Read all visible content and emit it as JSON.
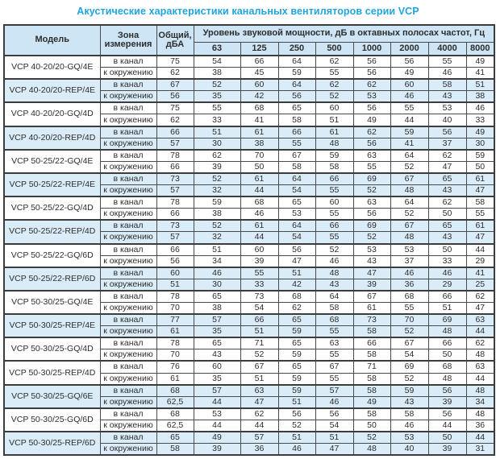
{
  "title": "Акустические характеристики канальных вентиляторов  серии VCP",
  "accent_colors": {
    "title_text": "#1fa5de",
    "header_background": "#cde5f4",
    "highlight_row_background": "#d9ecf8",
    "border": "#4a4a4a"
  },
  "table": {
    "columns": {
      "model": "Модель",
      "zone": "Зона измерения",
      "total": "Общий, дБА",
      "spl": "Уровень звуковой мощности, дБ в октавных полосах частот, Гц",
      "frequencies": [
        "63",
        "125",
        "250",
        "500",
        "1000",
        "2000",
        "4000",
        "8000"
      ]
    },
    "groups": [
      {
        "model": "VCP 40-20/20-GQ/4E",
        "highlight": false,
        "rows": [
          {
            "zone": "в канал",
            "total": "75",
            "levels": [
              "54",
              "66",
              "64",
              "62",
              "56",
              "56",
              "55",
              "49"
            ]
          },
          {
            "zone": "к окружению",
            "total": "62",
            "levels": [
              "38",
              "45",
              "59",
              "55",
              "56",
              "49",
              "46",
              "41"
            ]
          }
        ]
      },
      {
        "model": "VCP 40-20/20-REP/4E",
        "highlight": true,
        "rows": [
          {
            "zone": "в канал",
            "total": "67",
            "levels": [
              "52",
              "60",
              "64",
              "62",
              "62",
              "60",
              "58",
              "51"
            ]
          },
          {
            "zone": "к окружению",
            "total": "56",
            "levels": [
              "35",
              "42",
              "56",
              "52",
              "53",
              "46",
              "43",
              "38"
            ]
          }
        ]
      },
      {
        "model": "VCP 40-20/20-GQ/4D",
        "highlight": false,
        "rows": [
          {
            "zone": "в канал",
            "total": "75",
            "levels": [
              "55",
              "68",
              "65",
              "60",
              "56",
              "55",
              "53",
              "46"
            ]
          },
          {
            "zone": "к окружению",
            "total": "62",
            "levels": [
              "33",
              "41",
              "58",
              "51",
              "49",
              "44",
              "40",
              "33"
            ]
          }
        ]
      },
      {
        "model": "VCP 40-20/20-REP/4D",
        "highlight": true,
        "rows": [
          {
            "zone": "в канал",
            "total": "66",
            "levels": [
              "51",
              "61",
              "66",
              "61",
              "62",
              "59",
              "56",
              "49"
            ]
          },
          {
            "zone": "к окружению",
            "total": "57",
            "levels": [
              "30",
              "38",
              "55",
              "48",
              "56",
              "41",
              "37",
              "30"
            ]
          }
        ]
      },
      {
        "model": "VCP 50-25/22-GQ/4E",
        "highlight": false,
        "rows": [
          {
            "zone": "в канал",
            "total": "78",
            "levels": [
              "62",
              "70",
              "67",
              "59",
              "63",
              "64",
              "62",
              "59"
            ]
          },
          {
            "zone": "к окружению",
            "total": "66",
            "levels": [
              "39",
              "50",
              "58",
              "58",
              "55",
              "52",
              "47",
              "50"
            ]
          }
        ]
      },
      {
        "model": "VCP 50-25/22-REP/4E",
        "highlight": true,
        "rows": [
          {
            "zone": "в канал",
            "total": "73",
            "levels": [
              "52",
              "61",
              "64",
              "66",
              "69",
              "67",
              "65",
              "61"
            ]
          },
          {
            "zone": "к окружению",
            "total": "57",
            "levels": [
              "32",
              "44",
              "54",
              "55",
              "52",
              "48",
              "43",
              "47"
            ]
          }
        ]
      },
      {
        "model": "VCP 50-25/22-GQ/4D",
        "highlight": false,
        "rows": [
          {
            "zone": "в канал",
            "total": "78",
            "levels": [
              "59",
              "68",
              "65",
              "60",
              "63",
              "64",
              "62",
              "58"
            ]
          },
          {
            "zone": "к окружению",
            "total": "66",
            "levels": [
              "38",
              "46",
              "53",
              "55",
              "56",
              "52",
              "50",
              "55"
            ]
          }
        ]
      },
      {
        "model": "VCP 50-25/22-REP/4D",
        "highlight": true,
        "rows": [
          {
            "zone": "в канал",
            "total": "73",
            "levels": [
              "52",
              "61",
              "64",
              "66",
              "69",
              "67",
              "65",
              "61"
            ]
          },
          {
            "zone": "к окружению",
            "total": "57",
            "levels": [
              "32",
              "44",
              "54",
              "55",
              "52",
              "48",
              "43",
              "47"
            ]
          }
        ]
      },
      {
        "model": "VCP 50-25/22-GQ/6D",
        "highlight": false,
        "rows": [
          {
            "zone": "в канал",
            "total": "66",
            "levels": [
              "51",
              "60",
              "56",
              "52",
              "53",
              "53",
              "50",
              "44"
            ]
          },
          {
            "zone": "к окружению",
            "total": "56",
            "levels": [
              "34",
              "39",
              "47",
              "46",
              "43",
              "37",
              "33",
              "29"
            ]
          }
        ]
      },
      {
        "model": "VCP 50-25/22-REP/6D",
        "highlight": true,
        "rows": [
          {
            "zone": "в канал",
            "total": "60",
            "levels": [
              "46",
              "55",
              "51",
              "48",
              "47",
              "46",
              "46",
              "41"
            ]
          },
          {
            "zone": "к окружению",
            "total": "51",
            "levels": [
              "30",
              "33",
              "42",
              "43",
              "39",
              "36",
              "29",
              "25"
            ]
          }
        ]
      },
      {
        "model": "VCP 50-30/25-GQ/4E",
        "highlight": false,
        "rows": [
          {
            "zone": "в канал",
            "total": "78",
            "levels": [
              "65",
              "73",
              "68",
              "64",
              "67",
              "68",
              "66",
              "62"
            ]
          },
          {
            "zone": "к окружению",
            "total": "70",
            "levels": [
              "38",
              "54",
              "62",
              "58",
              "61",
              "55",
              "51",
              "47"
            ]
          }
        ]
      },
      {
        "model": "VCP 50-30/25-REP/4E",
        "highlight": true,
        "rows": [
          {
            "zone": "в канал",
            "total": "77",
            "levels": [
              "57",
              "66",
              "65",
              "68",
              "73",
              "70",
              "69",
              "63"
            ]
          },
          {
            "zone": "к окружению",
            "total": "61",
            "levels": [
              "35",
              "51",
              "59",
              "55",
              "58",
              "52",
              "48",
              "44"
            ]
          }
        ]
      },
      {
        "model": "VCP 50-30/25-GQ/4D",
        "highlight": false,
        "rows": [
          {
            "zone": "в канал",
            "total": "78",
            "levels": [
              "65",
              "71",
              "65",
              "63",
              "66",
              "67",
              "66",
              "62"
            ]
          },
          {
            "zone": "к окружению",
            "total": "70",
            "levels": [
              "43",
              "52",
              "59",
              "55",
              "58",
              "54",
              "50",
              "48"
            ]
          }
        ]
      },
      {
        "model": "VCP 50-30/25-REP/4D",
        "highlight": false,
        "rows": [
          {
            "zone": "в канал",
            "total": "76",
            "levels": [
              "60",
              "67",
              "65",
              "67",
              "71",
              "69",
              "68",
              "63"
            ]
          },
          {
            "zone": "к окружению",
            "total": "61",
            "levels": [
              "35",
              "51",
              "59",
              "55",
              "58",
              "52",
              "48",
              "44"
            ]
          }
        ]
      },
      {
        "model": "VCP 50-30/25-GQ/6E",
        "highlight": true,
        "rows": [
          {
            "zone": "в канал",
            "total": "68",
            "levels": [
              "57",
              "63",
              "59",
              "57",
              "58",
              "59",
              "56",
              "48"
            ]
          },
          {
            "zone": "к окружению",
            "total": "62,5",
            "levels": [
              "44",
              "47",
              "51",
              "46",
              "49",
              "43",
              "39",
              "34"
            ]
          }
        ]
      },
      {
        "model": "VCP 50-30/25-GQ/6D",
        "highlight": false,
        "rows": [
          {
            "zone": "в канал",
            "total": "68",
            "levels": [
              "53",
              "62",
              "56",
              "56",
              "58",
              "58",
              "56",
              "48"
            ]
          },
          {
            "zone": "к окружению",
            "total": "62,5",
            "levels": [
              "44",
              "44",
              "52",
              "54",
              "50",
              "46",
              "44",
              "36"
            ]
          }
        ]
      },
      {
        "model": "VCP 50-30/25-REP/6D",
        "highlight": true,
        "rows": [
          {
            "zone": "в канал",
            "total": "65",
            "levels": [
              "49",
              "57",
              "51",
              "51",
              "52",
              "53",
              "50",
              "44"
            ]
          },
          {
            "zone": "к окружению",
            "total": "58",
            "levels": [
              "39",
              "36",
              "46",
              "47",
              "48",
              "40",
              "39",
              "31"
            ]
          }
        ]
      }
    ]
  }
}
